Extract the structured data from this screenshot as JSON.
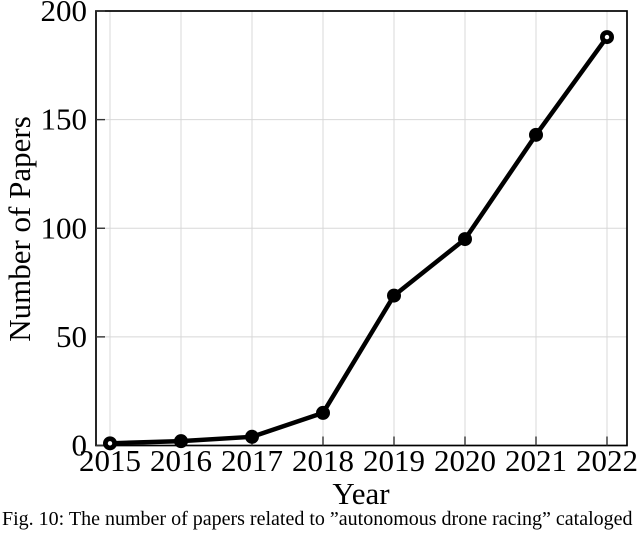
{
  "figure": {
    "caption": "Fig. 10: The number of papers related to ”autonomous drone racing” cataloged"
  },
  "chart_data": {
    "type": "line",
    "title": "",
    "xlabel": "Year",
    "ylabel": "Number of Papers",
    "x": [
      2015,
      2016,
      2017,
      2018,
      2019,
      2020,
      2021,
      2022
    ],
    "values": [
      1,
      2,
      4,
      15,
      69,
      95,
      143,
      188
    ],
    "ylim": [
      0,
      200
    ],
    "yticks": [
      0,
      50,
      100,
      150,
      200
    ],
    "grid": true,
    "legend": "none",
    "line_color": "#000000",
    "grid_color": "#d8d8d8",
    "tick_color": "#333333",
    "marker": "circle",
    "open_center_points": [
      2015,
      2022
    ]
  }
}
